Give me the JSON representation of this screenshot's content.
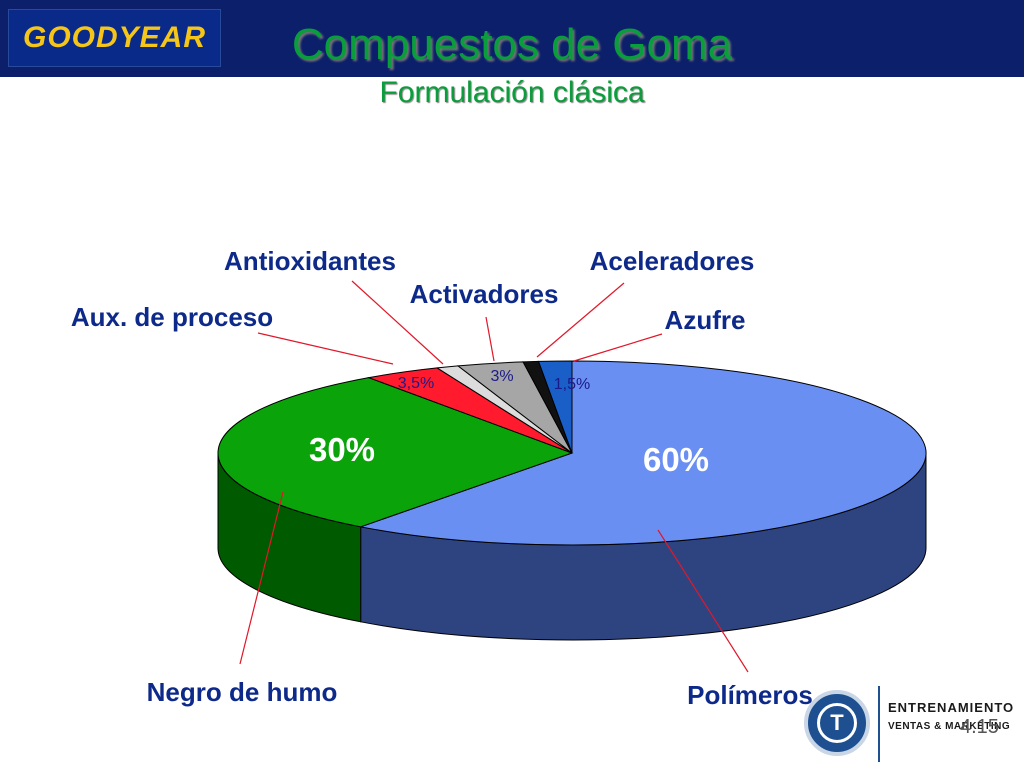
{
  "header": {
    "logo": "GOODYEAR",
    "title": "Compuestos de Goma",
    "subtitle": "Formulación clásica"
  },
  "chart_data": {
    "type": "pie",
    "title": "Compuestos de Goma",
    "subtitle": "Formulación clásica",
    "slices": [
      {
        "name": "Polímeros",
        "value": 60,
        "value_label": "60%",
        "color": "#6a8ff2",
        "side_color": "#2e4480"
      },
      {
        "name": "Negro de humo",
        "value": 30,
        "value_label": "30%",
        "color": "#0aa30a",
        "side_color": "#005a00"
      },
      {
        "name": "Aux. de proceso",
        "value": 3.5,
        "value_label": "3,5%",
        "color": "#ff1a2e",
        "side_color": "#8a0a14"
      },
      {
        "name": "Antioxidantes",
        "value": 1,
        "value_label": "",
        "color": "#dcdcdc",
        "side_color": "#8c8c8c"
      },
      {
        "name": "Activadores",
        "value": 3,
        "value_label": "3%",
        "color": "#a6a6a6",
        "side_color": "#5c5c5c"
      },
      {
        "name": "Aceleradores",
        "value": 0.7,
        "value_label": "",
        "color": "#111111",
        "side_color": "#000000"
      },
      {
        "name": "Azufre",
        "value": 1.5,
        "value_label": "1,5%",
        "color": "#1a5fc8",
        "side_color": "#0c2e66"
      }
    ],
    "legend": "callout-labels"
  },
  "footer": {
    "brand_line1": "ENTRENAMIENTO",
    "brand_line2": "VENTAS & MARKETING",
    "slide_number": "4.15"
  }
}
